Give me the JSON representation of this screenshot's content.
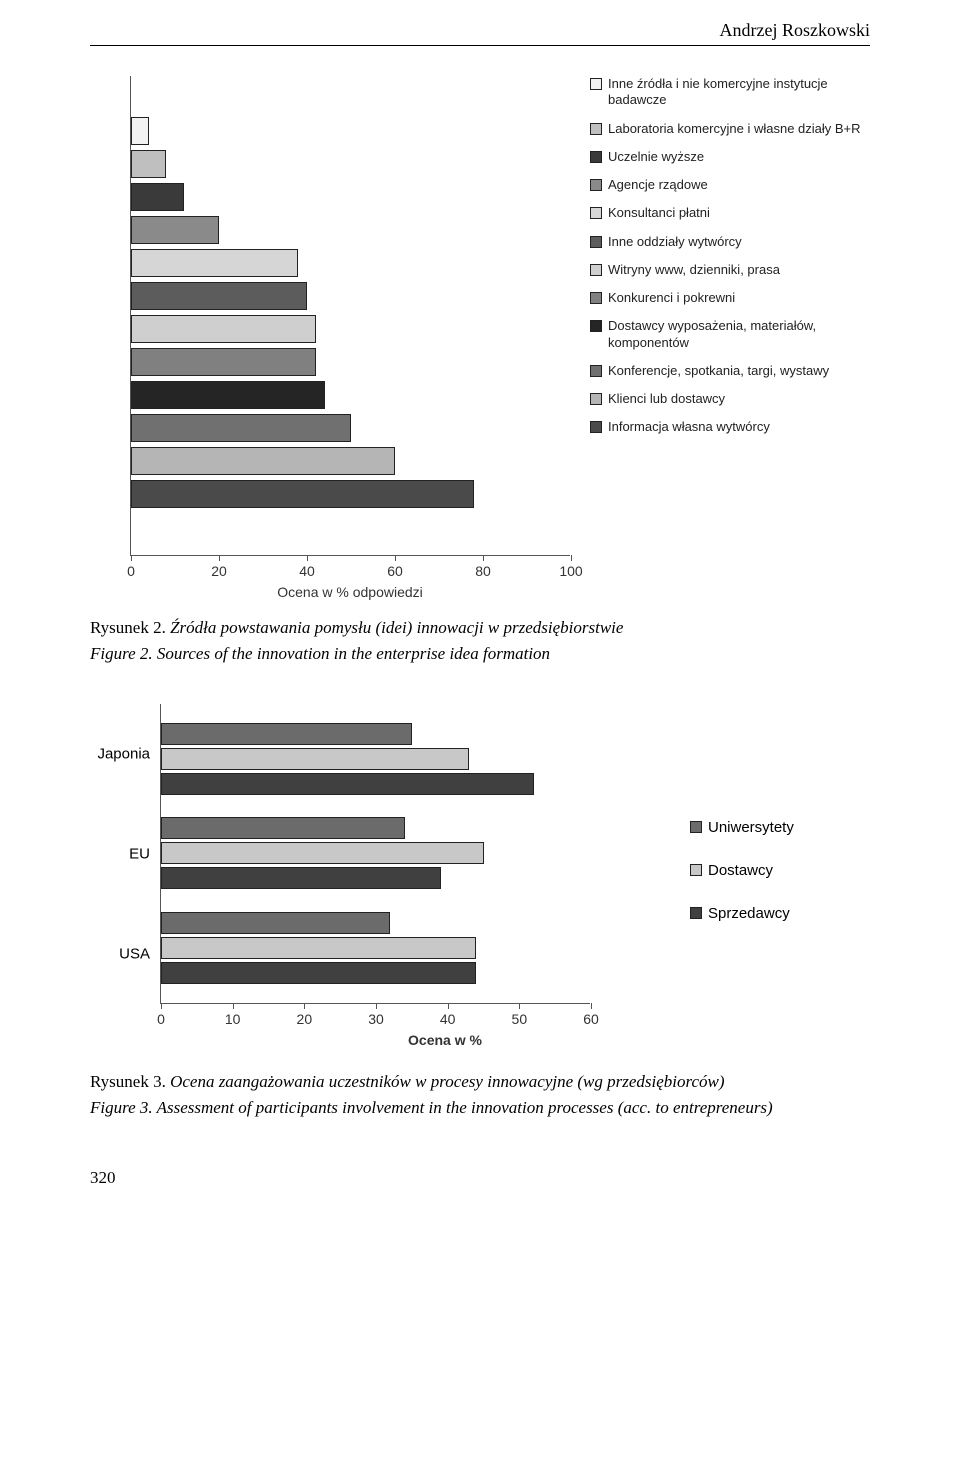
{
  "header": {
    "author": "Andrzej Roszkowski"
  },
  "chart1": {
    "type": "bar",
    "xlim": [
      0,
      100
    ],
    "xtick_step": 20,
    "xlabel": "Ocena w % odpowiedzi",
    "bar_border": "#222222",
    "bars": [
      {
        "label": "Inne źródła i nie komercyjne instytucje badawcze",
        "value": 4,
        "color": "#f2f2f2"
      },
      {
        "label": "Laboratoria komercyjne i własne działy B+R",
        "value": 8,
        "color": "#bfbfbf"
      },
      {
        "label": "Uczelnie wyższe",
        "value": 12,
        "color": "#3a3a3a"
      },
      {
        "label": "Agencje rządowe",
        "value": 20,
        "color": "#8a8a8a"
      },
      {
        "label": "Konsultanci płatni",
        "value": 38,
        "color": "#d6d6d6"
      },
      {
        "label": "Inne oddziały wytwórcy",
        "value": 40,
        "color": "#5c5c5c"
      },
      {
        "label": "Witryny www, dzienniki, prasa",
        "value": 42,
        "color": "#cfcfcf"
      },
      {
        "label": "Konkurenci i pokrewni",
        "value": 42,
        "color": "#808080"
      },
      {
        "label": "Dostawcy wyposażenia, materiałów, komponentów",
        "value": 44,
        "color": "#252525"
      },
      {
        "label": "Konferencje, spotkania, targi, wystawy",
        "value": 50,
        "color": "#707070"
      },
      {
        "label": "Klienci lub dostawcy",
        "value": 60,
        "color": "#b5b5b5"
      },
      {
        "label": "Informacja własna wytwórcy",
        "value": 78,
        "color": "#4a4a4a"
      }
    ]
  },
  "caption1": {
    "pl_prefix": "Rysunek 2. ",
    "pl_title": "Źródła powstawania pomysłu (idei) innowacji w przedsiębiorstwie",
    "en": "Figure 2. Sources of the innovation in the enterprise idea formation"
  },
  "chart2": {
    "type": "grouped-bar",
    "xlim": [
      0,
      60
    ],
    "xtick_step": 10,
    "xlabel": "Ocena w %",
    "series": [
      {
        "label": "Uniwersytety",
        "color": "#6b6b6b"
      },
      {
        "label": "Dostawcy",
        "color": "#c8c8c8"
      },
      {
        "label": "Sprzedawcy",
        "color": "#404040"
      }
    ],
    "groups": [
      {
        "label": "Japonia",
        "values": [
          35,
          43,
          52
        ]
      },
      {
        "label": "EU",
        "values": [
          34,
          45,
          39
        ]
      },
      {
        "label": "USA",
        "values": [
          32,
          44,
          44
        ]
      }
    ]
  },
  "caption2": {
    "pl_prefix": "Rysunek 3. ",
    "pl_title": "Ocena zaangażowania uczestników w procesy innowacyjne (wg przedsiębiorców)",
    "en": "Figure 3. Assessment of participants involvement in the innovation processes (acc. to entrepreneurs)"
  },
  "page_number": "320"
}
